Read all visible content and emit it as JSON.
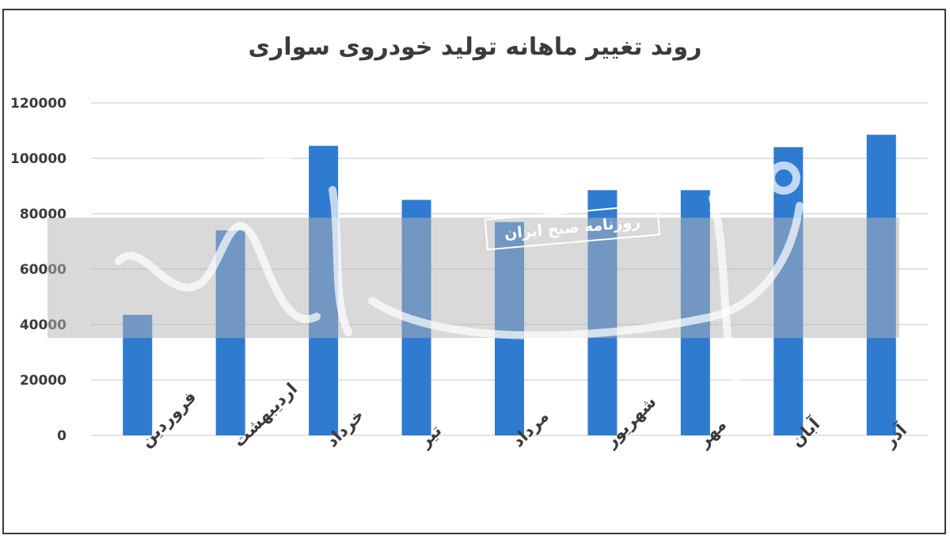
{
  "chart_data": {
    "type": "bar",
    "title": "روند تغییر ماهانه تولید خودروی سواری",
    "categories": [
      "فروردین",
      "اردیبهشت",
      "خرداد",
      "تیر",
      "مرداد",
      "شهریور",
      "مهر",
      "آبان",
      "آذر"
    ],
    "values": [
      43500,
      74000,
      104500,
      85000,
      77000,
      88500,
      88500,
      104000,
      108500
    ],
    "ylim": [
      0,
      120000
    ],
    "yticks": [
      0,
      20000,
      40000,
      60000,
      80000,
      100000,
      120000
    ],
    "ytick_labels": [
      "0",
      "20000",
      "40000",
      "60000",
      "80000",
      "100000",
      "120000"
    ],
    "bar_color": "#2f7bd0",
    "grid": true,
    "legend": "none"
  },
  "watermark": {
    "text": "روزنامه صبح ایران",
    "logo": "دنیای اقتصاد"
  }
}
